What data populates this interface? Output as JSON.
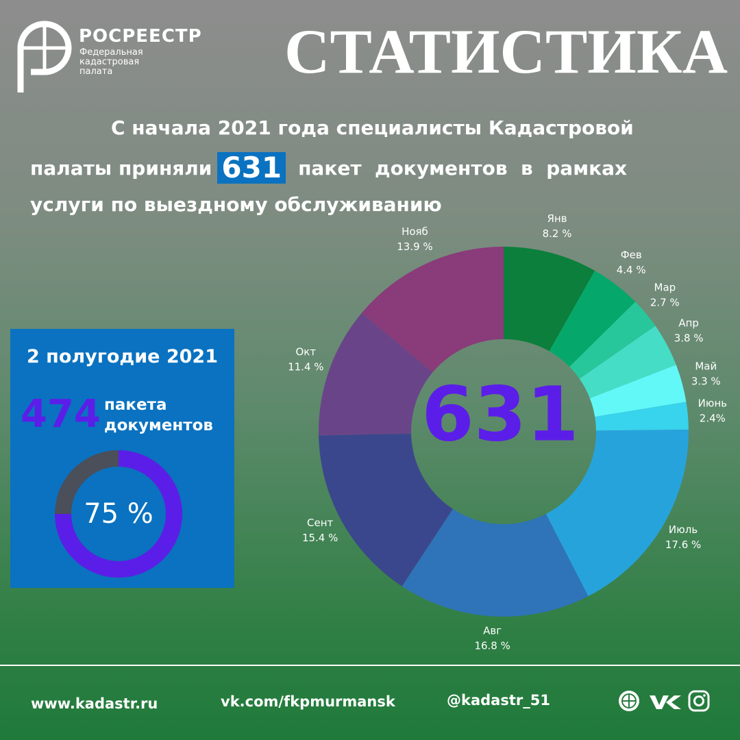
{
  "header": {
    "org": "РОСРЕЕСТР",
    "org_sub": [
      "Федеральная",
      "кадастровая",
      "палата"
    ],
    "title": "СТАТИСТИКА"
  },
  "intro": {
    "line1": "С начала 2021 года специалисты Кадастровой",
    "before": "палаты приняли",
    "highlight": "631",
    "after": "пакет  документов  в  рамках",
    "line3": "услуги по выездному обслуживанию"
  },
  "chart_data": {
    "type": "pie",
    "donut": true,
    "center_label": "631",
    "categories": [
      "Янв",
      "Фев",
      "Мар",
      "Апр",
      "Май",
      "Июнь",
      "Июль",
      "Авг",
      "Сент",
      "Окт",
      "Нояб"
    ],
    "values": [
      8.2,
      4.4,
      2.7,
      3.8,
      3.3,
      2.4,
      17.6,
      16.8,
      15.4,
      11.4,
      13.9
    ],
    "value_labels": [
      "8.2 %",
      "4.4 %",
      "2.7 %",
      "3.8 %",
      "3.3 %",
      "2.4%",
      "17.6 %",
      "16.8 %",
      "15.4 %",
      "11.4 %",
      "13.9 %"
    ],
    "colors": [
      "#0b7f3b",
      "#06a76a",
      "#27c79b",
      "#46ddc6",
      "#62f8f8",
      "#38d3ec",
      "#27a3dc",
      "#2f73b8",
      "#3b478c",
      "#6a4489",
      "#893b7a"
    ]
  },
  "panel": {
    "title": "2 полугодие 2021",
    "count": "474",
    "unit": [
      "пакета",
      "документов"
    ],
    "percent": 75,
    "percent_label": "75 %"
  },
  "footer": {
    "site": "www.kadastr.ru",
    "vk": "vk.com/fkpmurmansk",
    "handle": "@kadastr_51"
  }
}
